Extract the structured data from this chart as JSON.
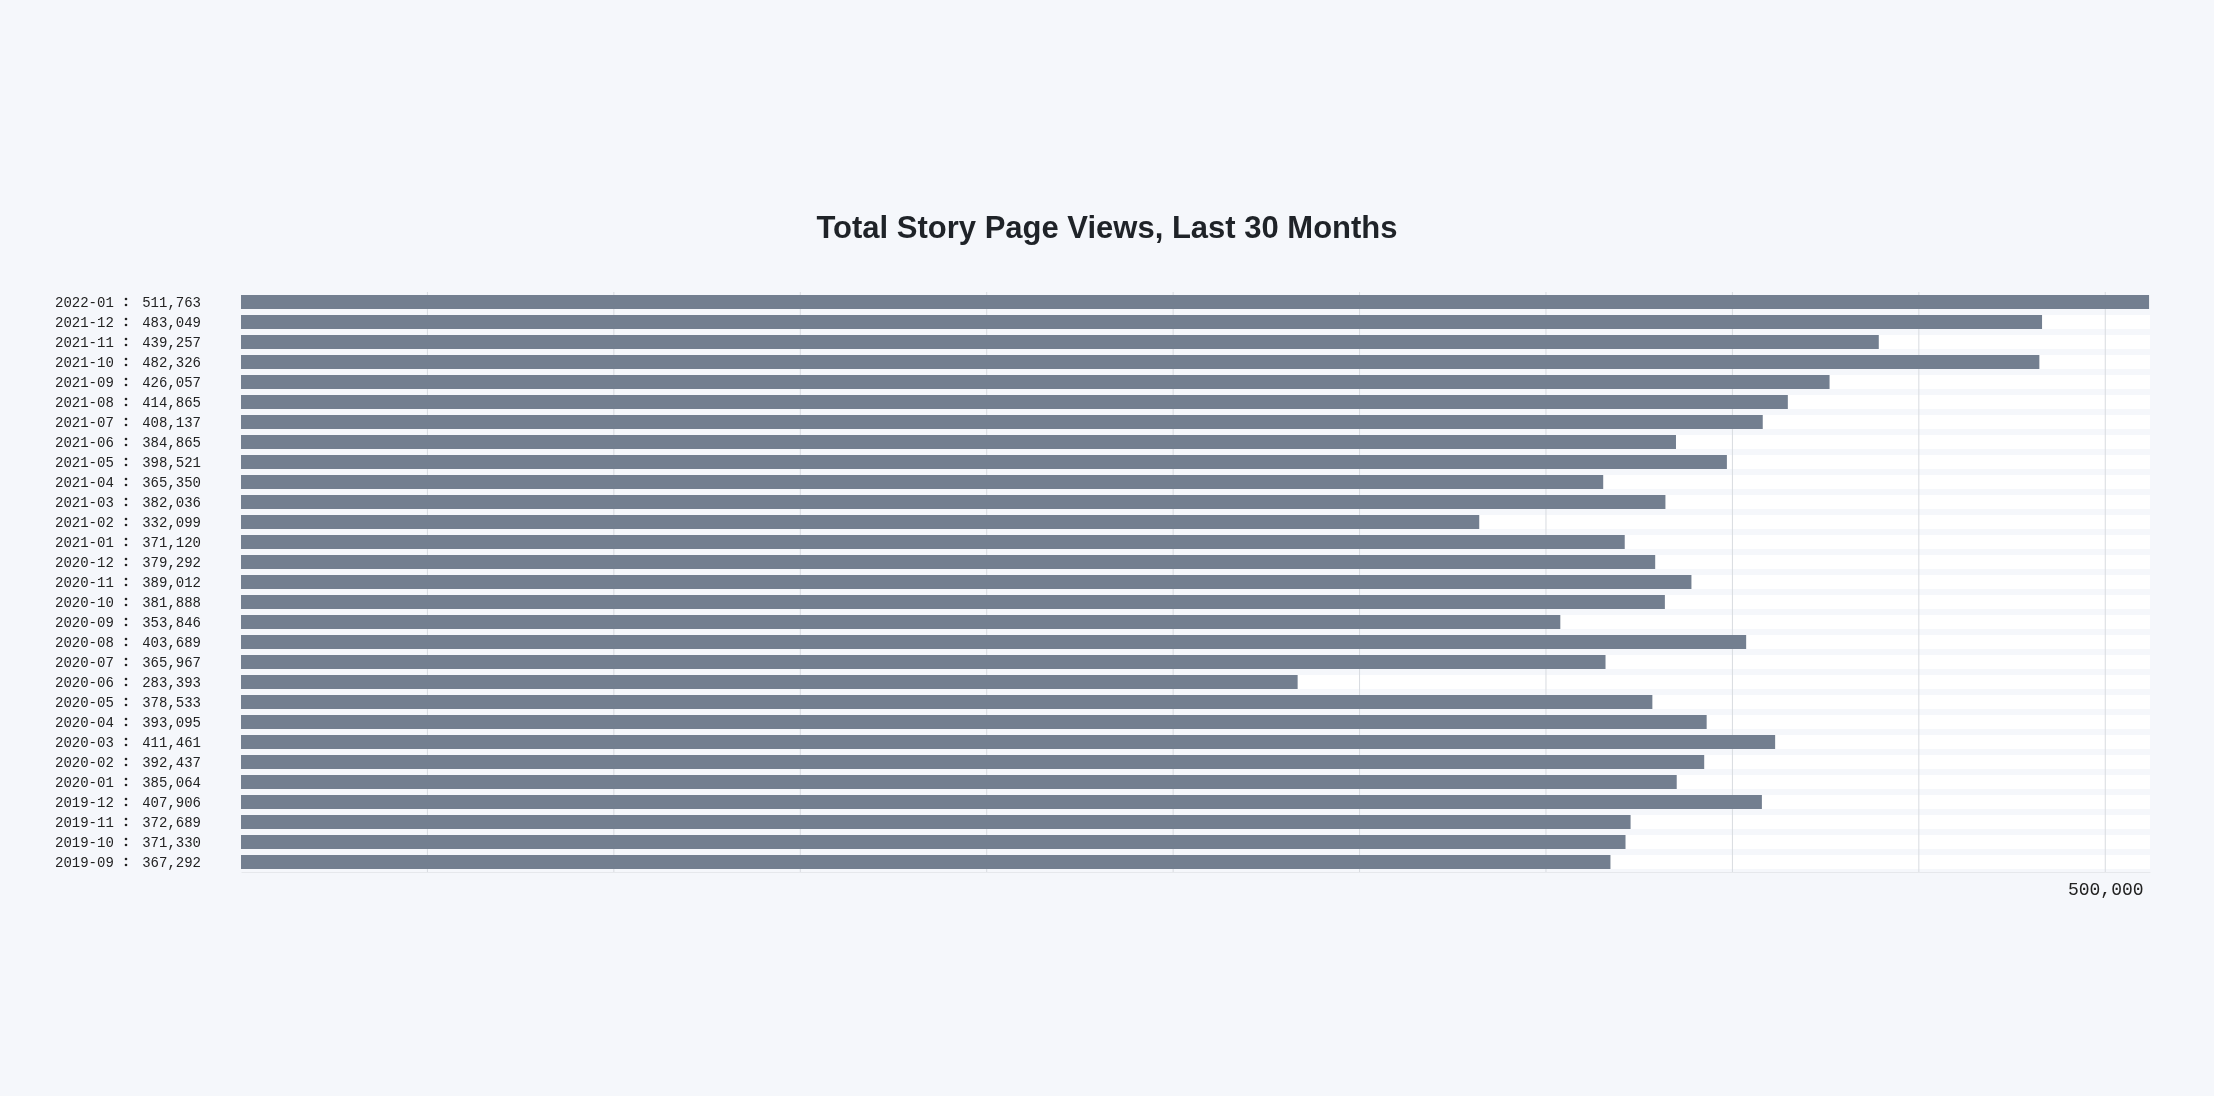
{
  "chart_data": {
    "type": "bar",
    "orientation": "horizontal",
    "title": "Total Story Page Views, Last 30 Months",
    "categories": [
      "2022-01",
      "2021-12",
      "2021-11",
      "2021-10",
      "2021-09",
      "2021-08",
      "2021-07",
      "2021-06",
      "2021-05",
      "2021-04",
      "2021-03",
      "2021-02",
      "2021-01",
      "2020-12",
      "2020-11",
      "2020-10",
      "2020-09",
      "2020-08",
      "2020-07",
      "2020-06",
      "2020-05",
      "2020-04",
      "2020-03",
      "2020-02",
      "2020-01",
      "2019-12",
      "2019-11",
      "2019-10",
      "2019-09"
    ],
    "values": [
      511763,
      483049,
      439257,
      482326,
      426057,
      414865,
      408137,
      384865,
      398521,
      365350,
      382036,
      332099,
      371120,
      379292,
      389012,
      381888,
      353846,
      403689,
      365967,
      283393,
      378533,
      393095,
      411461,
      392437,
      385064,
      407906,
      372689,
      371330,
      367292
    ],
    "value_labels": [
      "511,763",
      "483,049",
      "439,257",
      "482,326",
      "426,057",
      "414,865",
      "408,137",
      "384,865",
      "398,521",
      "365,350",
      "382,036",
      "332,099",
      "371,120",
      "379,292",
      "389,012",
      "381,888",
      "353,846",
      "403,689",
      "365,967",
      "283,393",
      "378,533",
      "393,095",
      "411,461",
      "392,437",
      "385,064",
      "407,906",
      "372,689",
      "371,330",
      "367,292"
    ],
    "color": "#737f90",
    "grid": "x",
    "xlim": [
      0,
      512000
    ],
    "xticks": [
      {
        "value": 50000,
        "label": null
      },
      {
        "value": 100000,
        "label": null
      },
      {
        "value": 150000,
        "label": null
      },
      {
        "value": 200000,
        "label": null
      },
      {
        "value": 250000,
        "label": null
      },
      {
        "value": 300000,
        "label": null
      },
      {
        "value": 350000,
        "label": null
      },
      {
        "value": 400000,
        "label": null
      },
      {
        "value": 450000,
        "label": null
      },
      {
        "value": 500000,
        "label": "500,000"
      }
    ]
  }
}
